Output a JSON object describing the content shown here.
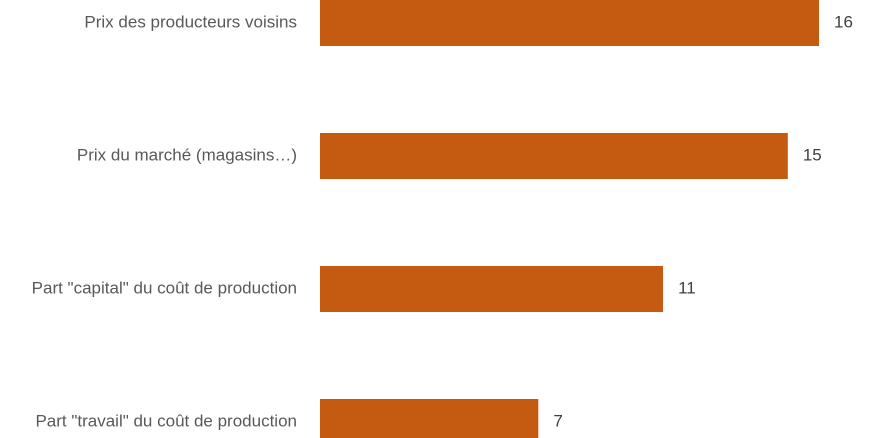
{
  "chart_data": {
    "type": "bar",
    "orientation": "horizontal",
    "categories": [
      "Prix des producteurs voisins",
      "Prix du marché (magasins…)",
      "Part \"capital\" du coût de production",
      "Part \"travail\" du coût de production"
    ],
    "values": [
      16,
      15,
      11,
      7
    ],
    "xlim": [
      0,
      16
    ],
    "grid": false,
    "legend": "none",
    "data_labels": true,
    "bar_color": "#C55A11"
  }
}
